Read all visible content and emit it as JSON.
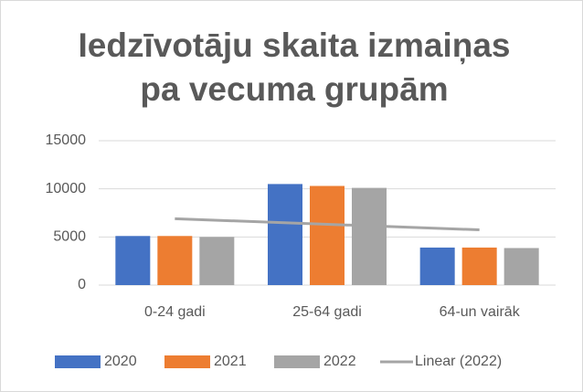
{
  "chart_data": {
    "type": "bar",
    "title": [
      "Iedzīvotāju skaita izmaiņas",
      "pa vecuma grupām"
    ],
    "categories": [
      "0-24 gadi",
      "25-64 gadi",
      "64-un vairāk"
    ],
    "series": [
      {
        "name": "2020",
        "color": "#4472c4",
        "values": [
          5100,
          10500,
          3900
        ]
      },
      {
        "name": "2021",
        "color": "#ed7d31",
        "values": [
          5100,
          10300,
          3900
        ]
      },
      {
        "name": "2022",
        "color": "#a5a5a5",
        "values": [
          5000,
          10100,
          3850
        ]
      }
    ],
    "trendline": {
      "name": "Linear (2022)",
      "series": 2,
      "color": "#a5a5a5"
    },
    "ylim": [
      0,
      15000
    ],
    "yticks": [
      0,
      5000,
      10000,
      15000
    ],
    "grid": true,
    "legend": "bottom"
  }
}
